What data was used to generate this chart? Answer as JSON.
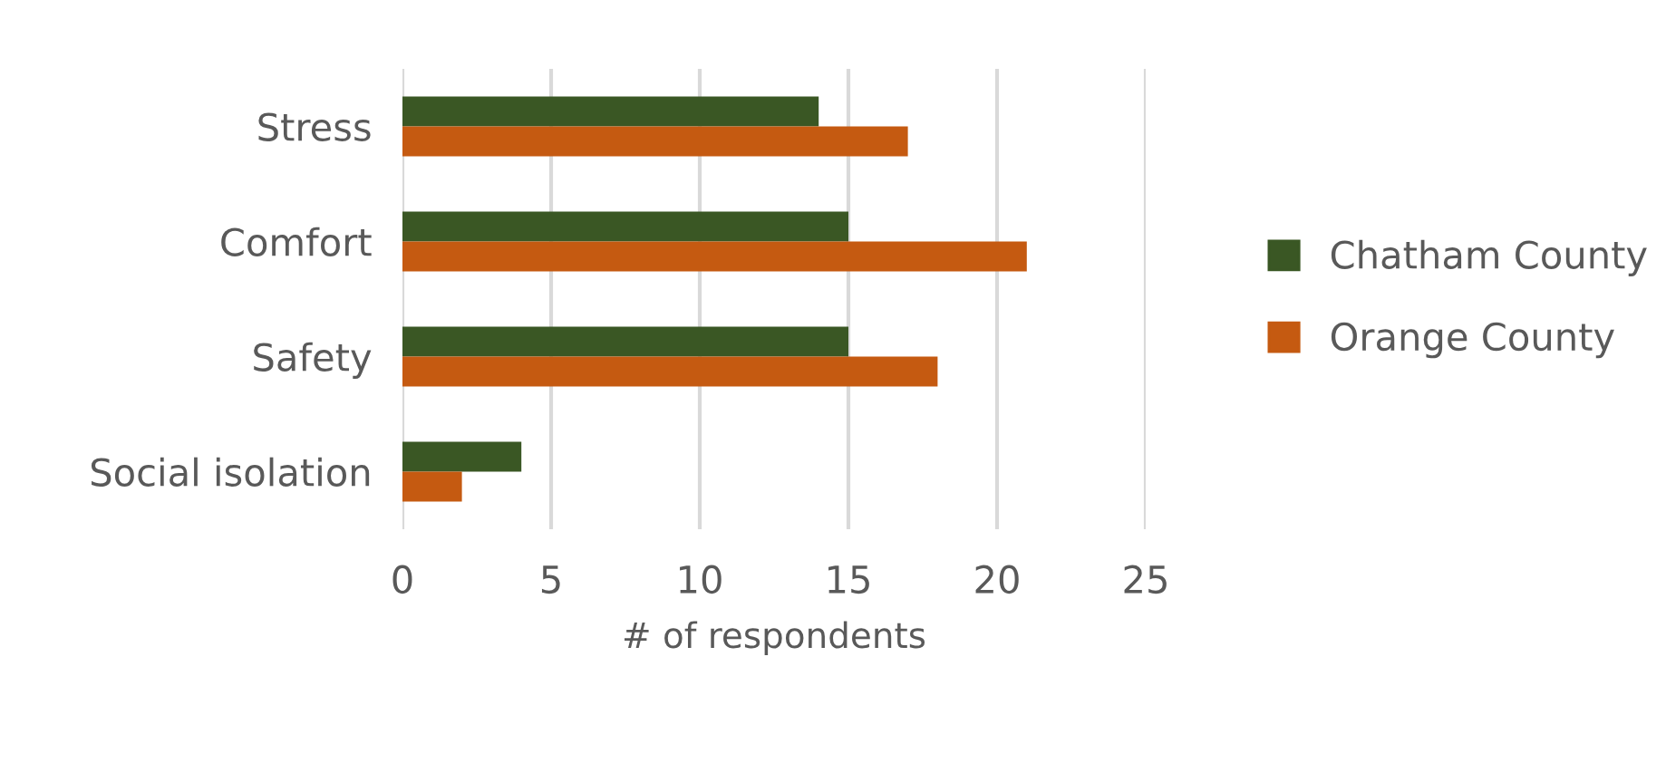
{
  "chart_data": {
    "type": "bar",
    "orientation": "horizontal",
    "xlabel": "# of respondents",
    "categories": [
      "Stress",
      "Comfort",
      "Safety",
      "Social isolation"
    ],
    "series": [
      {
        "name": "Chatham County",
        "color": "#3a5724",
        "values": [
          14,
          15,
          15,
          4
        ]
      },
      {
        "name": "Orange County",
        "color": "#c55a11",
        "values": [
          17,
          21,
          18,
          2
        ]
      }
    ],
    "xlim": [
      0,
      25
    ],
    "xticks": [
      0,
      5,
      10,
      15,
      20,
      25
    ],
    "grid": "x",
    "legend": "right"
  }
}
